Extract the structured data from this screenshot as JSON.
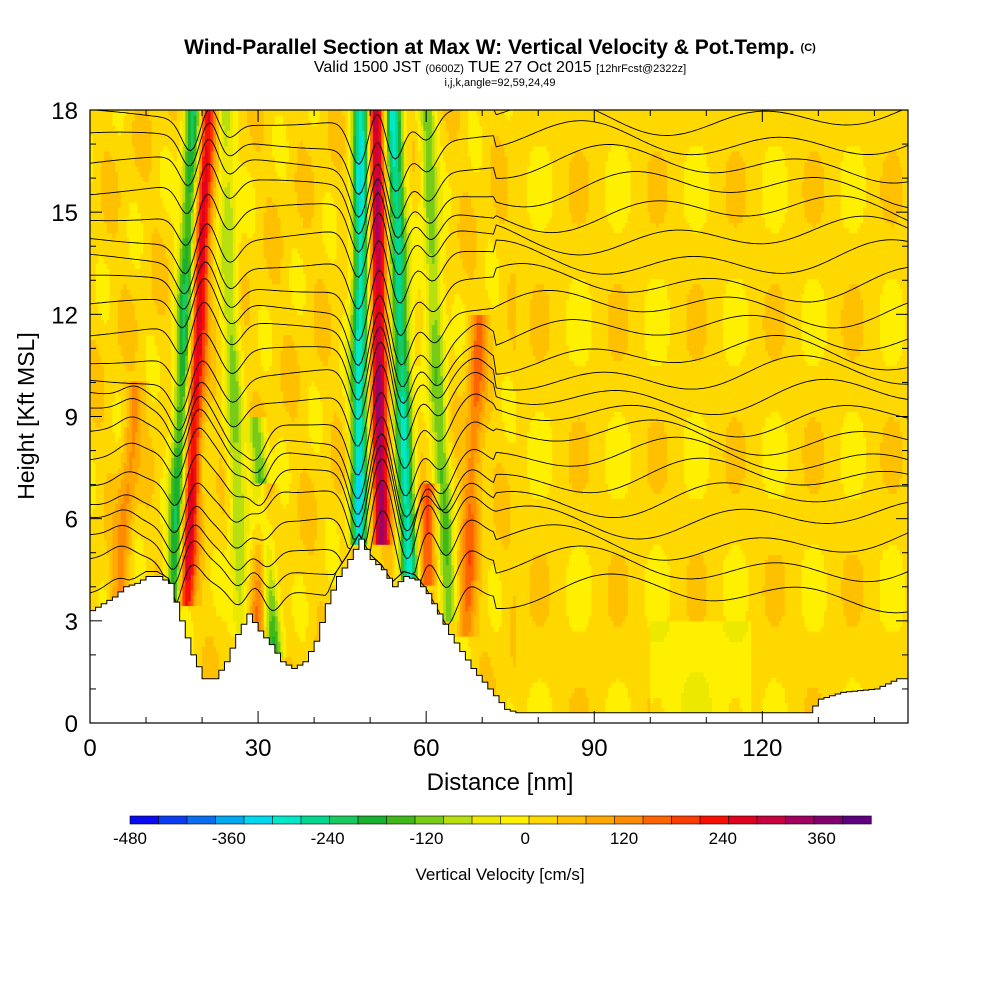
{
  "header": {
    "title": "Wind-Parallel Section at Max W: Vertical Velocity & Pot.Temp.",
    "copyright": "(C)",
    "subtitle_pre": "Valid 1500 JST ",
    "subtitle_zulu": "(0600Z)",
    "subtitle_post": " TUE 27 Oct 2015 ",
    "subtitle_fcst": "[12hrFcst@2322z]",
    "indices": "i,j,k,angle=92,59,24,49"
  },
  "chart_data": {
    "type": "heatmap",
    "xlabel": "Distance [nm]",
    "ylabel": "Height [Kft MSL]",
    "xlim": [
      0,
      146
    ],
    "ylim": [
      0,
      18
    ],
    "x_ticks": [
      0,
      30,
      60,
      90,
      120
    ],
    "y_ticks": [
      0,
      3,
      6,
      9,
      12,
      15,
      18
    ],
    "colorbar": {
      "label": "Vertical Velocity [cm/s]",
      "range": [
        -480,
        420
      ],
      "step": 30,
      "tick_labels": [
        -480,
        -360,
        -240,
        -120,
        0,
        120,
        240,
        360
      ],
      "colors": [
        "#0a0af0",
        "#0a3cf0",
        "#0a6ef0",
        "#00a8f0",
        "#00d8f0",
        "#00e8c8",
        "#00d890",
        "#18c860",
        "#1ab030",
        "#40b818",
        "#78cc18",
        "#b8e010",
        "#ece800",
        "#fff000",
        "#ffd800",
        "#ffc000",
        "#ffa800",
        "#ff8c00",
        "#ff6400",
        "#ff3c00",
        "#f81000",
        "#e00020",
        "#c80040",
        "#a00060",
        "#800070",
        "#600080"
      ]
    },
    "terrain_kft": [
      {
        "x": 0,
        "h": 3.3
      },
      {
        "x": 2,
        "h": 3.5
      },
      {
        "x": 4,
        "h": 3.7
      },
      {
        "x": 6,
        "h": 4.0
      },
      {
        "x": 8,
        "h": 4.1
      },
      {
        "x": 10,
        "h": 4.3
      },
      {
        "x": 12,
        "h": 4.3
      },
      {
        "x": 14,
        "h": 4.1
      },
      {
        "x": 16,
        "h": 3.0
      },
      {
        "x": 18,
        "h": 2.0
      },
      {
        "x": 20,
        "h": 1.3
      },
      {
        "x": 22,
        "h": 1.3
      },
      {
        "x": 24,
        "h": 1.8
      },
      {
        "x": 26,
        "h": 2.6
      },
      {
        "x": 28,
        "h": 3.2
      },
      {
        "x": 30,
        "h": 2.7
      },
      {
        "x": 32,
        "h": 2.3
      },
      {
        "x": 34,
        "h": 1.8
      },
      {
        "x": 36,
        "h": 1.6
      },
      {
        "x": 38,
        "h": 1.8
      },
      {
        "x": 40,
        "h": 2.4
      },
      {
        "x": 42,
        "h": 3.5
      },
      {
        "x": 44,
        "h": 4.3
      },
      {
        "x": 46,
        "h": 4.8
      },
      {
        "x": 48,
        "h": 5.4
      },
      {
        "x": 50,
        "h": 4.8
      },
      {
        "x": 52,
        "h": 4.5
      },
      {
        "x": 54,
        "h": 4.0
      },
      {
        "x": 56,
        "h": 4.3
      },
      {
        "x": 58,
        "h": 4.2
      },
      {
        "x": 60,
        "h": 3.8
      },
      {
        "x": 62,
        "h": 3.2
      },
      {
        "x": 64,
        "h": 2.6
      },
      {
        "x": 66,
        "h": 2.1
      },
      {
        "x": 68,
        "h": 1.6
      },
      {
        "x": 70,
        "h": 1.2
      },
      {
        "x": 72,
        "h": 0.8
      },
      {
        "x": 74,
        "h": 0.4
      },
      {
        "x": 76,
        "h": 0.3
      },
      {
        "x": 90,
        "h": 0.3
      },
      {
        "x": 110,
        "h": 0.3
      },
      {
        "x": 128,
        "h": 0.3
      },
      {
        "x": 130,
        "h": 0.7
      },
      {
        "x": 134,
        "h": 0.9
      },
      {
        "x": 140,
        "h": 1.0
      },
      {
        "x": 144,
        "h": 1.3
      },
      {
        "x": 146,
        "h": 1.3
      }
    ],
    "updraft_bands": [
      {
        "x_base": 17,
        "x_top": 21,
        "min_h": 3.5,
        "max_h": 18,
        "w": 260
      },
      {
        "x_base": 30,
        "x_top": 34,
        "min_h": 2.5,
        "max_h": 7,
        "w": 150
      },
      {
        "x_base": 52,
        "x_top": 51,
        "min_h": 5.2,
        "max_h": 18,
        "w": 300
      },
      {
        "x_base": 60,
        "x_top": 63,
        "min_h": 4.0,
        "max_h": 7,
        "w": 150
      },
      {
        "x_base": 67,
        "x_top": 71,
        "min_h": 2.5,
        "max_h": 12,
        "w": 120
      },
      {
        "x_base": 5,
        "x_top": 12,
        "min_h": 3.3,
        "max_h": 10,
        "w": 90
      }
    ],
    "downdraft_bands": [
      {
        "x_base": 15,
        "x_top": 18.5,
        "min_h": 3.5,
        "max_h": 18,
        "w": -240
      },
      {
        "x_base": 33,
        "x_top": 25,
        "min_h": 2.0,
        "max_h": 9,
        "w": -180
      },
      {
        "x_base": 48,
        "x_top": 48.5,
        "min_h": 5.2,
        "max_h": 18,
        "w": -330
      },
      {
        "x_base": 57,
        "x_top": 54,
        "min_h": 4.2,
        "max_h": 18,
        "w": -300
      },
      {
        "x_base": 64,
        "x_top": 60,
        "min_h": 3.0,
        "max_h": 18,
        "w": -150
      },
      {
        "x_base": 27,
        "x_top": 24,
        "min_h": 2.5,
        "max_h": 18,
        "w": -120
      }
    ],
    "theta_levels_kft": [
      3.8,
      4.6,
      5.3,
      6.0,
      6.6,
      7.2,
      7.8,
      8.4,
      9.0,
      9.6,
      10.2,
      10.8,
      11.5,
      12.2,
      12.9,
      13.6,
      14.3,
      15.0,
      15.7,
      16.4,
      17.1,
      17.8
    ]
  }
}
